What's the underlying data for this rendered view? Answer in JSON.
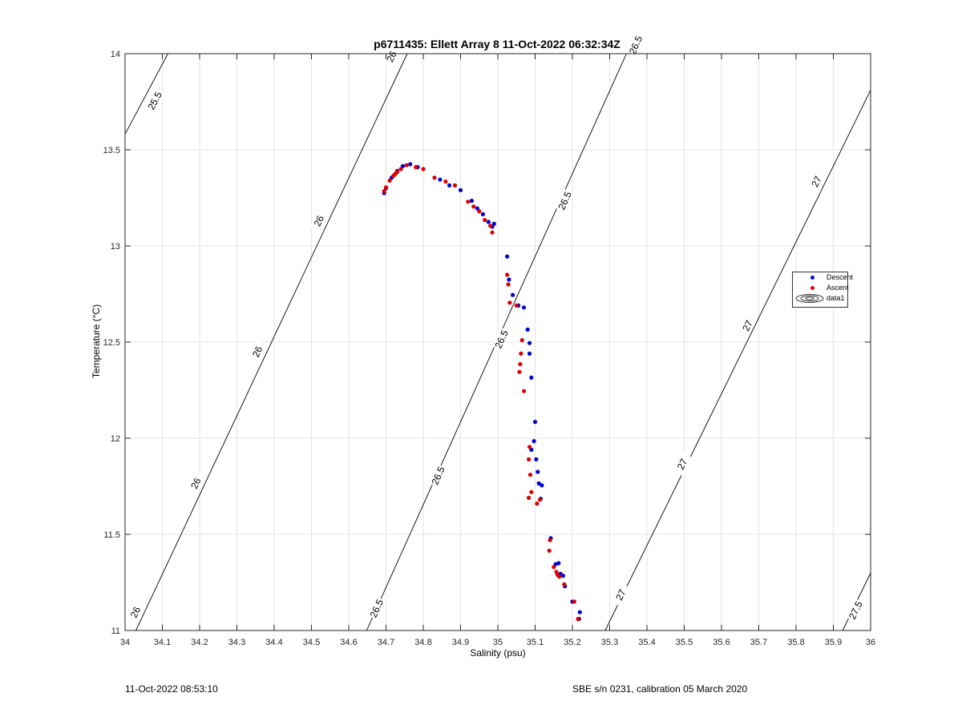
{
  "chart_data": {
    "type": "scatter",
    "title": "p6711435: Ellett Array 8 11-Oct-2022 06:32:34Z",
    "xlabel": "Salinity (psu)",
    "ylabel": "Temperature (°C)",
    "xlim": [
      34,
      36
    ],
    "ylim": [
      11,
      14
    ],
    "xticks": [
      "34",
      "34.1",
      "34.2",
      "34.3",
      "34.4",
      "34.5",
      "34.6",
      "34.7",
      "34.8",
      "34.9",
      "35",
      "35.1",
      "35.2",
      "35.3",
      "35.4",
      "35.5",
      "35.6",
      "35.7",
      "35.8",
      "35.9",
      "36"
    ],
    "yticks": [
      "11",
      "11.5",
      "12",
      "12.5",
      "13",
      "13.5",
      "14"
    ],
    "grid": true,
    "legend_position": "right",
    "legend": [
      "Descent",
      "Ascent",
      "data1"
    ],
    "series": [
      {
        "name": "Descent",
        "color": "#0000cc",
        "points": [
          [
            34.695,
            13.275
          ],
          [
            34.7,
            13.3
          ],
          [
            34.715,
            13.355
          ],
          [
            34.73,
            13.39
          ],
          [
            34.745,
            13.415
          ],
          [
            34.765,
            13.425
          ],
          [
            34.785,
            13.41
          ],
          [
            34.845,
            13.345
          ],
          [
            34.87,
            13.315
          ],
          [
            34.9,
            13.29
          ],
          [
            34.93,
            13.235
          ],
          [
            34.945,
            13.195
          ],
          [
            34.96,
            13.165
          ],
          [
            34.975,
            13.125
          ],
          [
            34.985,
            13.1
          ],
          [
            34.99,
            13.115
          ],
          [
            35.025,
            12.945
          ],
          [
            35.03,
            12.825
          ],
          [
            35.04,
            12.745
          ],
          [
            35.055,
            12.69
          ],
          [
            35.07,
            12.68
          ],
          [
            35.08,
            12.565
          ],
          [
            35.085,
            12.495
          ],
          [
            35.085,
            12.44
          ],
          [
            35.09,
            12.315
          ],
          [
            35.1,
            12.085
          ],
          [
            35.097,
            11.985
          ],
          [
            35.09,
            11.94
          ],
          [
            35.103,
            11.89
          ],
          [
            35.107,
            11.825
          ],
          [
            35.11,
            11.765
          ],
          [
            35.118,
            11.755
          ],
          [
            35.115,
            11.685
          ],
          [
            35.142,
            11.48
          ],
          [
            35.155,
            11.345
          ],
          [
            35.163,
            11.35
          ],
          [
            35.168,
            11.295
          ],
          [
            35.175,
            11.285
          ],
          [
            35.18,
            11.23
          ],
          [
            35.2,
            11.15
          ],
          [
            35.22,
            11.095
          ],
          [
            35.218,
            11.06
          ]
        ]
      },
      {
        "name": "Ascent",
        "color": "#dd0000",
        "points": [
          [
            34.695,
            13.285
          ],
          [
            34.7,
            13.305
          ],
          [
            34.71,
            13.34
          ],
          [
            34.72,
            13.365
          ],
          [
            34.725,
            13.375
          ],
          [
            34.73,
            13.385
          ],
          [
            34.74,
            13.4
          ],
          [
            34.755,
            13.42
          ],
          [
            34.78,
            13.41
          ],
          [
            34.8,
            13.4
          ],
          [
            34.83,
            13.355
          ],
          [
            34.86,
            13.335
          ],
          [
            34.885,
            13.315
          ],
          [
            34.92,
            13.23
          ],
          [
            34.935,
            13.205
          ],
          [
            34.95,
            13.18
          ],
          [
            34.965,
            13.135
          ],
          [
            34.98,
            13.105
          ],
          [
            34.985,
            13.07
          ],
          [
            35.025,
            12.85
          ],
          [
            35.028,
            12.8
          ],
          [
            35.032,
            12.705
          ],
          [
            35.05,
            12.69
          ],
          [
            35.065,
            12.51
          ],
          [
            35.062,
            12.44
          ],
          [
            35.06,
            12.385
          ],
          [
            35.058,
            12.345
          ],
          [
            35.07,
            12.245
          ],
          [
            35.085,
            11.955
          ],
          [
            35.083,
            11.89
          ],
          [
            35.087,
            11.81
          ],
          [
            35.09,
            11.72
          ],
          [
            35.083,
            11.69
          ],
          [
            35.105,
            11.66
          ],
          [
            35.113,
            11.68
          ],
          [
            35.14,
            11.47
          ],
          [
            35.138,
            11.415
          ],
          [
            35.15,
            11.33
          ],
          [
            35.157,
            11.305
          ],
          [
            35.16,
            11.29
          ],
          [
            35.165,
            11.28
          ],
          [
            35.178,
            11.24
          ],
          [
            35.205,
            11.15
          ],
          [
            35.215,
            11.06
          ]
        ]
      }
    ],
    "contours": [
      {
        "label": "25.5",
        "line": [
          [
            34,
            13.5815
          ],
          [
            34.115,
            14
          ]
        ],
        "labels": [
          [
            34.08,
            13.755
          ]
        ]
      },
      {
        "label": "26",
        "line": [
          [
            34.029,
            11
          ],
          [
            34.757,
            14
          ]
        ],
        "labels": [
          [
            34.028,
            11.095
          ],
          [
            34.19,
            11.765
          ],
          [
            34.355,
            12.45
          ],
          [
            34.52,
            13.13
          ],
          [
            34.715,
            13.985
          ]
        ]
      },
      {
        "label": "26.5",
        "line": [
          [
            34.648,
            11
          ],
          [
            35.345,
            14
          ]
        ],
        "labels": [
          [
            34.675,
            11.115
          ],
          [
            34.84,
            11.805
          ],
          [
            35.01,
            12.515
          ],
          [
            35.18,
            13.235
          ],
          [
            35.37,
            14.045
          ]
        ]
      },
      {
        "label": "27",
        "line": [
          [
            35.288,
            11
          ],
          [
            36,
            13.8105
          ]
        ],
        "labels": [
          [
            35.33,
            11.185
          ],
          [
            35.495,
            11.865
          ],
          [
            35.67,
            12.585
          ],
          [
            35.855,
            13.335
          ]
        ]
      },
      {
        "label": "27.5",
        "line": [
          [
            35.925,
            11
          ],
          [
            36,
            11.2995
          ]
        ],
        "labels": [
          [
            35.96,
            11.105
          ]
        ]
      }
    ]
  },
  "footer": {
    "left": "11-Oct-2022 08:53:10",
    "right": "SBE s/n 0231, calibration 05 March 2020"
  }
}
